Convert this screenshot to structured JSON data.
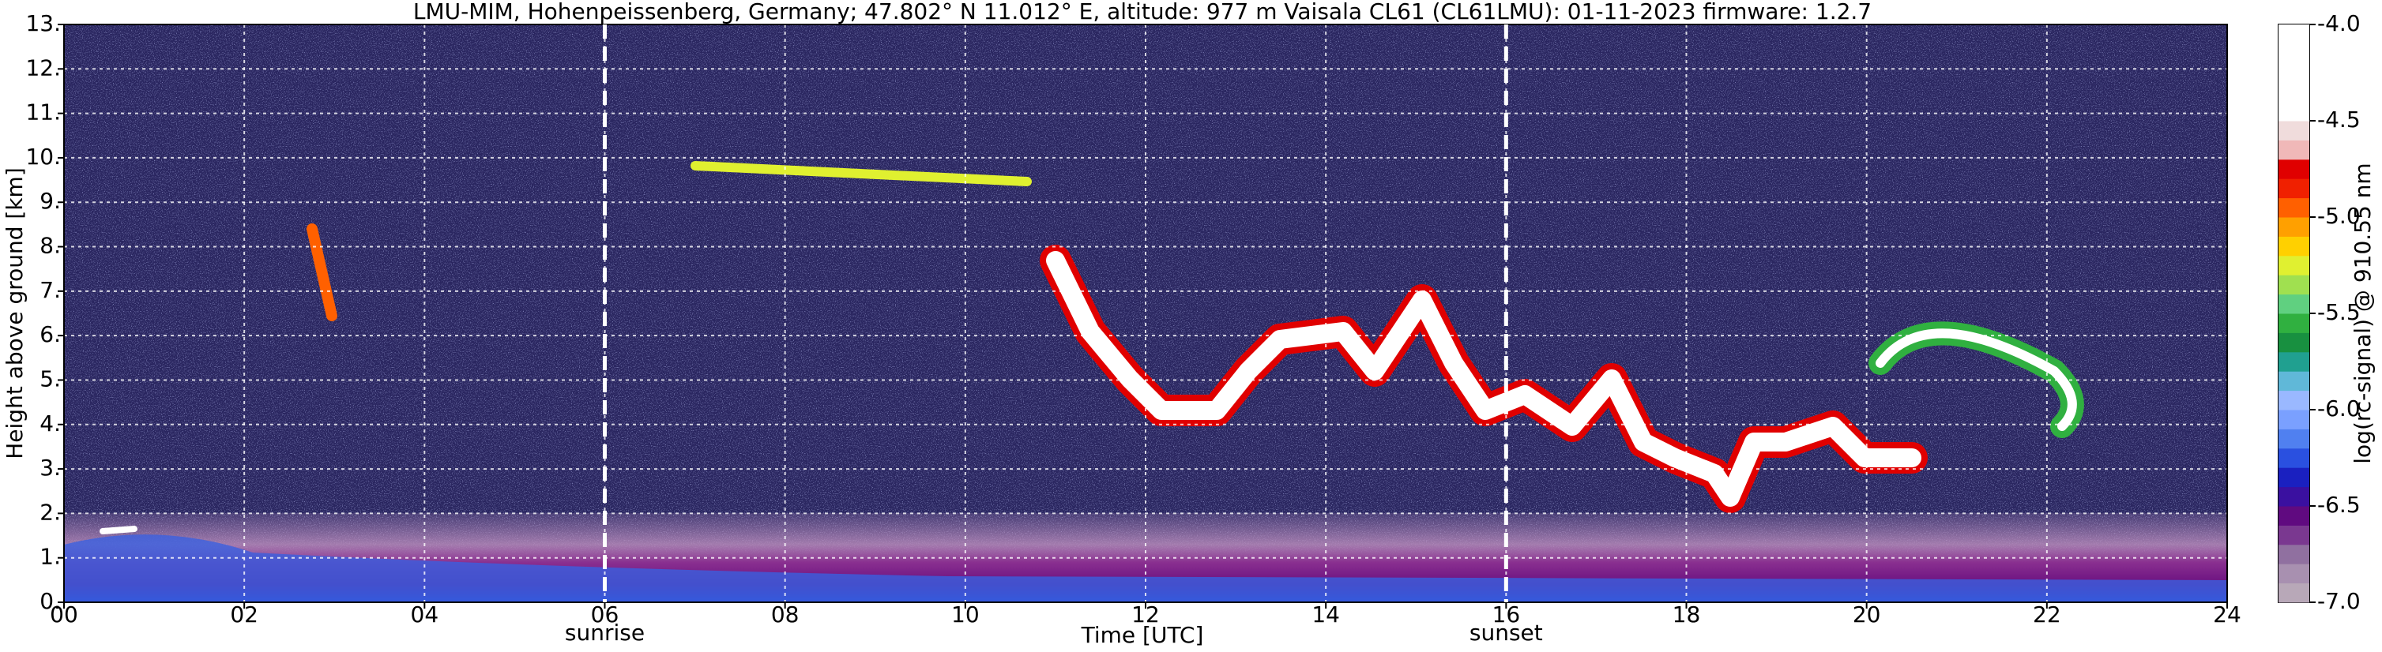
{
  "chart_data": {
    "type": "heatmap",
    "title": "LMU-MIM, Hohenpeissenberg, Germany; 47.802° N 11.012° E, altitude: 977 m    Vaisala CL61 (CL61LMU): 01-11-2023    firmware: 1.2.7",
    "xlabel": "Time [UTC]",
    "ylabel": "Height above ground [km]",
    "xlim": [
      0,
      24
    ],
    "xticks": [
      {
        "value": 0,
        "label": "00"
      },
      {
        "value": 2,
        "label": "02"
      },
      {
        "value": 4,
        "label": "04"
      },
      {
        "value": 6,
        "label": "06"
      },
      {
        "value": 8,
        "label": "08"
      },
      {
        "value": 10,
        "label": "10"
      },
      {
        "value": 12,
        "label": "12"
      },
      {
        "value": 14,
        "label": "14"
      },
      {
        "value": 16,
        "label": "16"
      },
      {
        "value": 18,
        "label": "18"
      },
      {
        "value": 20,
        "label": "20"
      },
      {
        "value": 22,
        "label": "22"
      },
      {
        "value": 24,
        "label": "24"
      }
    ],
    "ylim": [
      0,
      13
    ],
    "yticks": [
      {
        "value": 0,
        "label": "0."
      },
      {
        "value": 1,
        "label": "1."
      },
      {
        "value": 2,
        "label": "2."
      },
      {
        "value": 3,
        "label": "3."
      },
      {
        "value": 4,
        "label": "4."
      },
      {
        "value": 5,
        "label": "5."
      },
      {
        "value": 6,
        "label": "6."
      },
      {
        "value": 7,
        "label": "7."
      },
      {
        "value": 8,
        "label": "8."
      },
      {
        "value": 9,
        "label": "9."
      },
      {
        "value": 10,
        "label": "10."
      },
      {
        "value": 11,
        "label": "11."
      },
      {
        "value": 12,
        "label": "12."
      },
      {
        "value": 13,
        "label": "13."
      }
    ],
    "grid": true,
    "annotations": [
      {
        "x": 6,
        "text": "sunrise"
      },
      {
        "x": 16,
        "text": "sunset"
      }
    ],
    "colorbar": {
      "label": "log(rc-signal) @ 910.55 nm",
      "lim": [
        -7,
        -4
      ],
      "ticks": [
        {
          "value": -4,
          "label": "-4.0"
        },
        {
          "value": -4.5,
          "label": "-4.5"
        },
        {
          "value": -5,
          "label": "-5.0"
        },
        {
          "value": -5.5,
          "label": "-5.5"
        },
        {
          "value": -6,
          "label": "-6.0"
        },
        {
          "value": -6.5,
          "label": "-6.5"
        },
        {
          "value": -7,
          "label": "-7.0"
        }
      ],
      "colors": [
        "#b8a8b8",
        "#a890b0",
        "#9070a0",
        "#7a3890",
        "#600a80",
        "#3a10a0",
        "#1a20c0",
        "#2a50e0",
        "#5080f0",
        "#7aa0ff",
        "#9ab8ff",
        "#60b8d8",
        "#20a090",
        "#189040",
        "#30b040",
        "#60d080",
        "#a0e050",
        "#e0f030",
        "#ffd000",
        "#ffa000",
        "#ff6000",
        "#f02000",
        "#e00000",
        "#f0b8b8",
        "#f0dcdc",
        "#ffffff",
        "#ffffff",
        "#ffffff",
        "#ffffff",
        "#ffffff"
      ]
    }
  }
}
